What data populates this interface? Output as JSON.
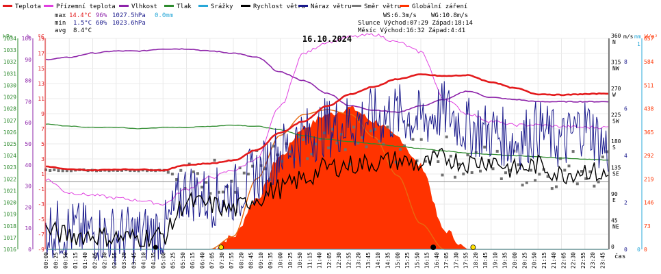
{
  "chart_data": {
    "type": "line",
    "title": "16.10.2024",
    "legend": [
      {
        "name": "Teplota",
        "color": "#e31a1c"
      },
      {
        "name": "Přízemní teplota",
        "color": "#e040e0"
      },
      {
        "name": "Vlhkost",
        "color": "#8e24aa"
      },
      {
        "name": "Tlak",
        "color": "#2e8b2e"
      },
      {
        "name": "Srážky",
        "color": "#29a8d8"
      },
      {
        "name": "Rychlost větru",
        "color": "#000000"
      },
      {
        "name": "Náraz větru",
        "color": "#1a1a8c"
      },
      {
        "name": "Směr větru",
        "color": "#777777"
      },
      {
        "name": "Globální záření",
        "color": "#ff3300"
      }
    ],
    "stats": {
      "max": {
        "label": "max",
        "temp": "14.4°C",
        "hum": "96%",
        "press": "1027.5hPa",
        "rain": "0.0mm"
      },
      "min": {
        "label": "min",
        "temp": "1.5°C",
        "hum": "60%",
        "press": "1023.6hPa"
      },
      "avg": {
        "label": "avg",
        "temp": "8.4°C"
      }
    },
    "info": {
      "ws": "WS:6.3m/s",
      "wg": "WG:10.8m/s",
      "sun": "Slunce Východ:07:29  Západ:18:14",
      "moon": "Měsíc  Východ:16:32  Západ:4:41"
    },
    "axes": {
      "hpa": {
        "unit": "hPa",
        "ticks": [
          "1034",
          "1033",
          "1032",
          "1031",
          "1030",
          "1029",
          "1028",
          "1027",
          "1026",
          "1025",
          "1024",
          "1023",
          "1022",
          "1021",
          "1020",
          "1019",
          "1018",
          "1017",
          "1016"
        ]
      },
      "pct": {
        "unit": "%",
        "ticks": [
          "100",
          "90",
          "80",
          "70",
          "60",
          "50",
          "40",
          "30",
          "20",
          "10",
          "0"
        ]
      },
      "temp": {
        "unit": "°C",
        "ticks": [
          "19",
          "17",
          "15",
          "13",
          "11",
          "9",
          "7",
          "5",
          "3",
          "1",
          "-1",
          "-3",
          "-5",
          "-7",
          "-9"
        ]
      },
      "dir": {
        "ticks": [
          {
            "deg": "360",
            "lbl": "N"
          },
          {
            "deg": "315",
            "lbl": "NW"
          },
          {
            "deg": "270",
            "lbl": "W"
          },
          {
            "deg": "225",
            "lbl": "SW"
          },
          {
            "deg": "180",
            "lbl": "S"
          },
          {
            "deg": "135",
            "lbl": "SE"
          },
          {
            "deg": "90",
            "lbl": "E"
          },
          {
            "deg": "45",
            "lbl": "NE"
          },
          {
            "deg": "0",
            "lbl": ""
          }
        ]
      },
      "ms": {
        "unit": "m/s",
        "ticks": [
          "8",
          "6",
          "4",
          "2",
          "0"
        ]
      },
      "mm": {
        "unit": "mm",
        "ticks": [
          "1",
          "0"
        ]
      },
      "wm2": {
        "unit": "W/m²",
        "ticks": [
          "657",
          "584",
          "511",
          "438",
          "365",
          "292",
          "219",
          "146",
          "73",
          "0"
        ]
      },
      "x_label": "čas",
      "x_ticks": [
        "00:00",
        "00:25",
        "00:50",
        "01:15",
        "01:40",
        "02:05",
        "02:30",
        "02:55",
        "03:20",
        "03:45",
        "04:10",
        "04:35",
        "05:00",
        "05:25",
        "05:50",
        "06:15",
        "06:40",
        "07:05",
        "07:30",
        "07:55",
        "08:20",
        "08:45",
        "09:10",
        "09:35",
        "10:00",
        "10:25",
        "10:50",
        "11:15",
        "11:40",
        "12:05",
        "12:30",
        "12:55",
        "13:20",
        "13:45",
        "14:10",
        "14:35",
        "15:00",
        "15:25",
        "15:50",
        "16:15",
        "16:40",
        "17:05",
        "17:30",
        "17:55",
        "18:20",
        "18:45",
        "19:10",
        "19:35",
        "20:00",
        "20:25",
        "20:50",
        "21:15",
        "21:40",
        "22:05",
        "22:30",
        "22:55",
        "23:20",
        "23:45"
      ]
    },
    "x_hours": [
      0,
      1,
      2,
      3,
      4,
      5,
      6,
      7,
      8,
      9,
      10,
      11,
      12,
      13,
      14,
      15,
      16,
      17,
      18,
      19,
      20,
      21,
      22,
      23,
      24
    ],
    "temperature_c": [
      2.0,
      1.6,
      1.5,
      1.6,
      1.6,
      1.5,
      2.2,
      2.4,
      2.8,
      4.2,
      6.5,
      8.0,
      10.0,
      11.6,
      12.6,
      13.6,
      14.2,
      14.0,
      14.1,
      13.2,
      12.4,
      11.6,
      11.5,
      11.6,
      11.7
    ],
    "ground_temp_c": [
      0.3,
      -1.5,
      -1.8,
      -2.2,
      -2.5,
      -3.0,
      -1.0,
      0.5,
      1.5,
      3.0,
      10.0,
      17.0,
      18.5,
      19.2,
      19.5,
      18.5,
      17.2,
      11.0,
      9.0,
      8.0,
      7.5,
      7.5,
      7.3,
      7.2,
      7.2
    ],
    "humidity_pct": [
      90,
      91,
      93,
      94,
      94,
      95,
      95,
      94,
      93,
      91,
      84,
      80,
      74,
      68,
      66,
      65,
      68,
      71,
      75,
      72,
      71,
      70,
      70,
      70,
      70
    ],
    "pressure_hpa": [
      1026.7,
      1026.5,
      1026.4,
      1026.4,
      1026.3,
      1026.4,
      1026.4,
      1026.5,
      1026.6,
      1026.5,
      1026.2,
      1025.7,
      1025.4,
      1025.2,
      1025.0,
      1024.8,
      1024.6,
      1024.4,
      1024.2,
      1024.1,
      1024.0,
      1023.9,
      1023.8,
      1023.7,
      1023.6
    ],
    "precip_mm": [
      0,
      0,
      0,
      0,
      0,
      0,
      0,
      0,
      0,
      0,
      0,
      0,
      0,
      0,
      0,
      0,
      0,
      0,
      0,
      0,
      0,
      0,
      0,
      0,
      0
    ],
    "wind_speed_ms": [
      0.8,
      0.6,
      0.6,
      0.5,
      0.5,
      0.6,
      2.0,
      1.9,
      1.7,
      2.2,
      2.6,
      3.0,
      3.5,
      3.6,
      3.7,
      3.8,
      3.6,
      3.9,
      3.7,
      3.8,
      3.4,
      3.6,
      3.2,
      3.4,
      3.1
    ],
    "wind_gust_ms": [
      0.9,
      0.8,
      0.7,
      0.6,
      0.6,
      0.8,
      2.5,
      2.2,
      2.4,
      3.2,
      4.2,
      4.8,
      5.2,
      5.4,
      5.6,
      5.8,
      5.5,
      5.9,
      5.2,
      5.0,
      4.6,
      5.1,
      4.6,
      5.3,
      4.3
    ],
    "wind_dir_deg": [
      135,
      135,
      135,
      135,
      135,
      135,
      115,
      125,
      130,
      140,
      150,
      160,
      170,
      175,
      185,
      180,
      175,
      160,
      150,
      145,
      140,
      135,
      138,
      140,
      142
    ],
    "radiation_wm2": [
      0,
      0,
      0,
      0,
      0,
      0,
      0,
      0,
      40,
      160,
      290,
      380,
      420,
      440,
      400,
      350,
      260,
      60,
      0,
      0,
      0,
      0,
      0,
      0,
      0
    ],
    "clear_sky_wm2": [
      0,
      0,
      0,
      0,
      0,
      0,
      0,
      0,
      40,
      220,
      355,
      420,
      435,
      420,
      350,
      230,
      80,
      0,
      0,
      0,
      0,
      0,
      0,
      0,
      0
    ]
  }
}
